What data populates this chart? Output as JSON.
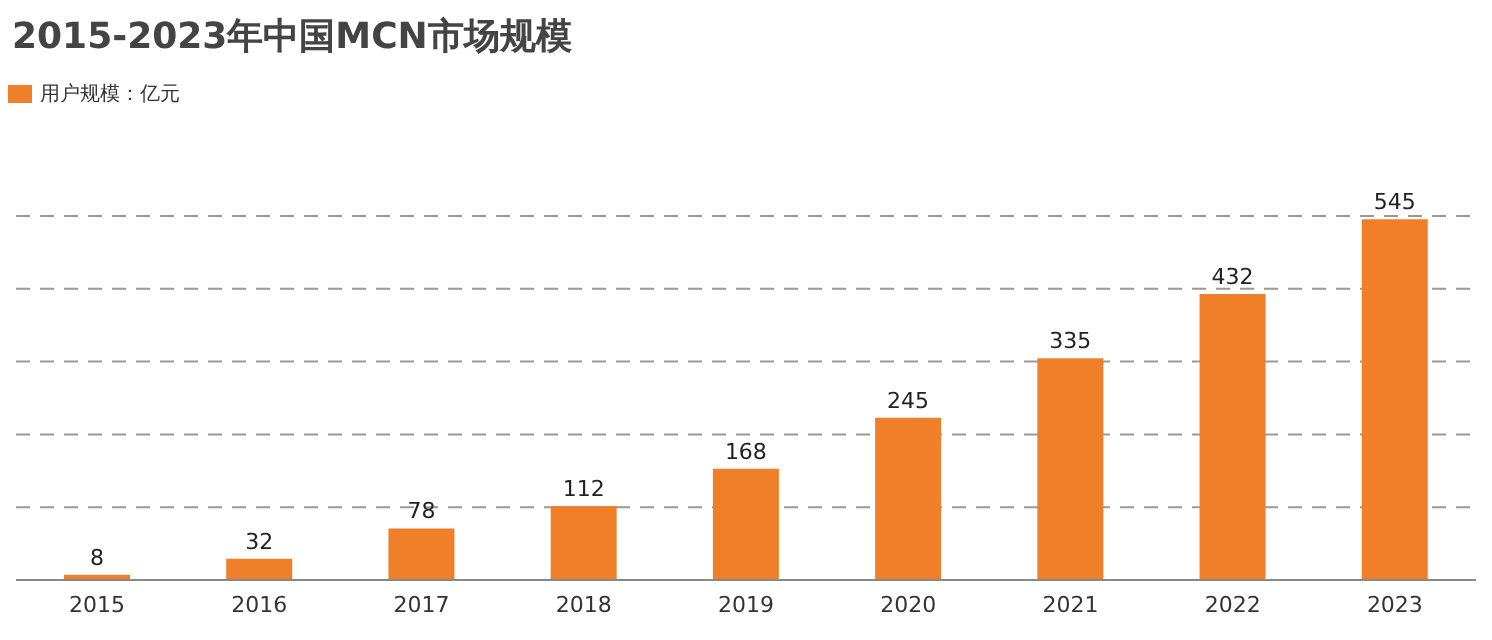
{
  "chart_data": {
    "type": "bar",
    "title": "2015-2023年中国MCN市场规模",
    "categories": [
      "2015",
      "2016",
      "2017",
      "2018",
      "2019",
      "2020",
      "2021",
      "2022",
      "2023"
    ],
    "series": [
      {
        "name": "用户规模：亿元",
        "color": "#f07f2a",
        "values": [
          8,
          32,
          78,
          112,
          168,
          245,
          335,
          432,
          545
        ]
      }
    ],
    "ylim": [
      0,
      550
    ],
    "tick_labels": "x",
    "grid": "y",
    "legend": "top left",
    "data_labels": true
  }
}
